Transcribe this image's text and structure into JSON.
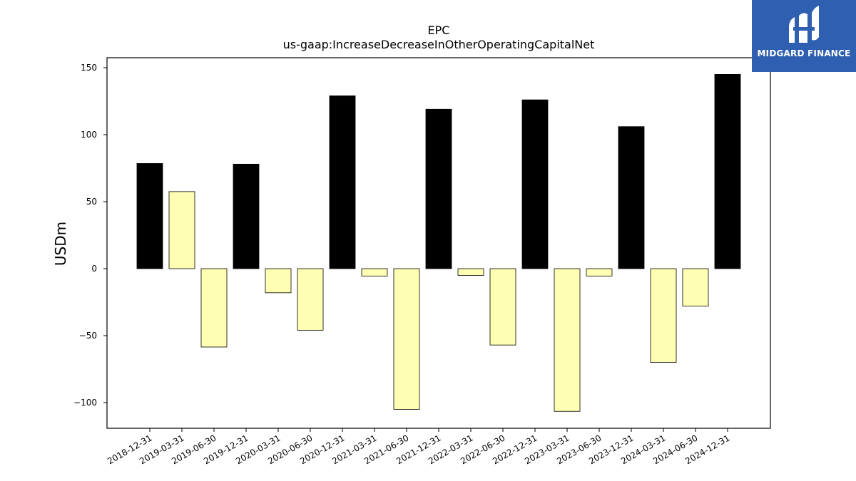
{
  "brand": {
    "name": "MIDGARD FINANCE",
    "background_color": "#2f5fb0",
    "icon": "midgard-logo-icon"
  },
  "chart_data": {
    "type": "bar",
    "title": "EPC",
    "subtitle": "us-gaap:IncreaseDecreaseInOtherOperatingCapitalNet",
    "xlabel": "",
    "ylabel": "USDm",
    "ylim": [
      -120,
      157
    ],
    "yticks": [
      -100,
      -50,
      0,
      50,
      100,
      150
    ],
    "ytick_labels": [
      "−100",
      "−50",
      "0",
      "50",
      "100",
      "150"
    ],
    "grid": false,
    "categories": [
      "2018-12-31",
      "2019-03-31",
      "2019-06-30",
      "2019-12-31",
      "2020-03-31",
      "2020-06-30",
      "2020-12-31",
      "2021-03-31",
      "2021-06-30",
      "2021-12-31",
      "2022-03-31",
      "2022-06-30",
      "2022-12-31",
      "2023-03-31",
      "2023-06-30",
      "2023-12-31",
      "2024-03-31",
      "2024-06-30",
      "2024-12-31"
    ],
    "values": [
      78.5,
      57.5,
      -58.5,
      78,
      -18,
      -46,
      129,
      -5.5,
      -105,
      119,
      -5,
      -57,
      126,
      -106.5,
      -5.5,
      106,
      -70,
      -28,
      145
    ],
    "colors": {
      "annual": "#000000",
      "quarterly": "#ffffb3",
      "edge": "#000000"
    }
  }
}
